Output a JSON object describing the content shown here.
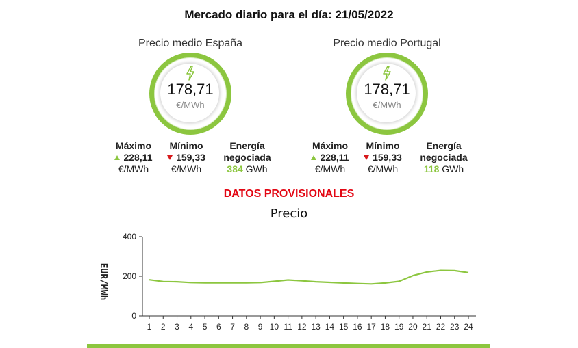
{
  "page": {
    "title": "Mercado diario para el día: 21/05/2022",
    "provisional": "DATOS PROVISIONALES"
  },
  "spain": {
    "label": "Precio medio España",
    "value": "178,71",
    "unit": "€/MWh",
    "max_label": "Máximo",
    "max_value": "228,11",
    "max_unit": "€/MWh",
    "min_label": "Mínimo",
    "min_value": "159,33",
    "min_unit": "€/MWh",
    "energy_label_1": "Energía",
    "energy_label_2": "negociada",
    "energy_value": "384",
    "energy_unit": "GWh"
  },
  "portugal": {
    "label": "Precio medio Portugal",
    "value": "178,71",
    "unit": "€/MWh",
    "max_label": "Máximo",
    "max_value": "228,11",
    "max_unit": "€/MWh",
    "min_label": "Mínimo",
    "min_value": "159,33",
    "min_unit": "€/MWh",
    "energy_label_1": "Energía",
    "energy_label_2": "negociada",
    "energy_value": "118",
    "energy_unit": "GWh"
  },
  "colors": {
    "accent": "#8cc63f",
    "alert": "#e30613",
    "down": "#d7191c"
  },
  "icons": {
    "gauge": "lightning-bolt-icon",
    "up": "triangle-up-icon",
    "down": "triangle-down-icon"
  },
  "chart_data": {
    "type": "line",
    "title": "Precio",
    "xlabel": "",
    "ylabel": "EUR/MWh",
    "x": [
      1,
      2,
      3,
      4,
      5,
      6,
      7,
      8,
      9,
      10,
      11,
      12,
      13,
      14,
      15,
      16,
      17,
      18,
      19,
      20,
      21,
      22,
      23,
      24
    ],
    "series": [
      {
        "values": [
          182,
          173,
          172,
          168,
          167,
          167,
          167,
          167,
          168,
          174,
          181,
          177,
          172,
          169,
          166,
          163,
          161,
          166,
          174,
          203,
          221,
          229,
          228,
          218
        ]
      }
    ],
    "ylim": [
      0,
      400
    ],
    "yticks": [
      0,
      200,
      400
    ],
    "grid": false,
    "line_color": "#8cc63f"
  }
}
